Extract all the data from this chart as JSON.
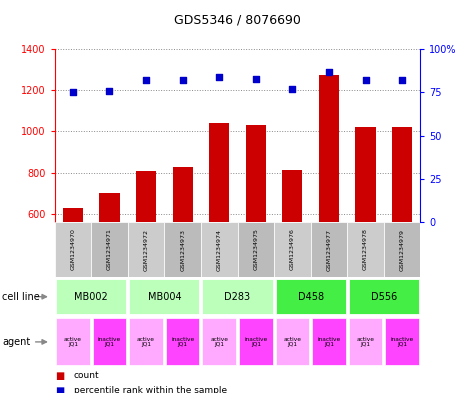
{
  "title": "GDS5346 / 8076690",
  "samples": [
    "GSM1234970",
    "GSM1234971",
    "GSM1234972",
    "GSM1234973",
    "GSM1234974",
    "GSM1234975",
    "GSM1234976",
    "GSM1234977",
    "GSM1234978",
    "GSM1234979"
  ],
  "counts": [
    628,
    700,
    808,
    826,
    1042,
    1030,
    813,
    1272,
    1022,
    1022
  ],
  "percentiles": [
    75,
    76,
    82,
    82,
    84,
    83,
    77,
    87,
    82,
    82
  ],
  "ylim_left": [
    560,
    1400
  ],
  "ylim_right": [
    0,
    100
  ],
  "yticks_left": [
    600,
    800,
    1000,
    1200,
    1400
  ],
  "yticks_right": [
    0,
    25,
    50,
    75,
    100
  ],
  "cell_lines": [
    {
      "label": "MB002",
      "cols": [
        0,
        1
      ],
      "color": "#bbffbb"
    },
    {
      "label": "MB004",
      "cols": [
        2,
        3
      ],
      "color": "#bbffbb"
    },
    {
      "label": "D283",
      "cols": [
        4,
        5
      ],
      "color": "#bbffbb"
    },
    {
      "label": "D458",
      "cols": [
        6,
        7
      ],
      "color": "#44ee44"
    },
    {
      "label": "D556",
      "cols": [
        8,
        9
      ],
      "color": "#44ee44"
    }
  ],
  "agents": [
    {
      "label": "active\nJQ1",
      "col": 0,
      "color": "#ffaaff"
    },
    {
      "label": "inactive\nJQ1",
      "col": 1,
      "color": "#ff44ff"
    },
    {
      "label": "active\nJQ1",
      "col": 2,
      "color": "#ffaaff"
    },
    {
      "label": "inactive\nJQ1",
      "col": 3,
      "color": "#ff44ff"
    },
    {
      "label": "active\nJQ1",
      "col": 4,
      "color": "#ffaaff"
    },
    {
      "label": "inactive\nJQ1",
      "col": 5,
      "color": "#ff44ff"
    },
    {
      "label": "active\nJQ1",
      "col": 6,
      "color": "#ffaaff"
    },
    {
      "label": "inactive\nJQ1",
      "col": 7,
      "color": "#ff44ff"
    },
    {
      "label": "active\nJQ1",
      "col": 8,
      "color": "#ffaaff"
    },
    {
      "label": "inactive\nJQ1",
      "col": 9,
      "color": "#ff44ff"
    }
  ],
  "bar_color": "#cc0000",
  "dot_color": "#0000cc",
  "grid_color": "#888888",
  "bg_color": "#ffffff",
  "sample_bg_odd": "#cccccc",
  "sample_bg_even": "#bbbbbb"
}
